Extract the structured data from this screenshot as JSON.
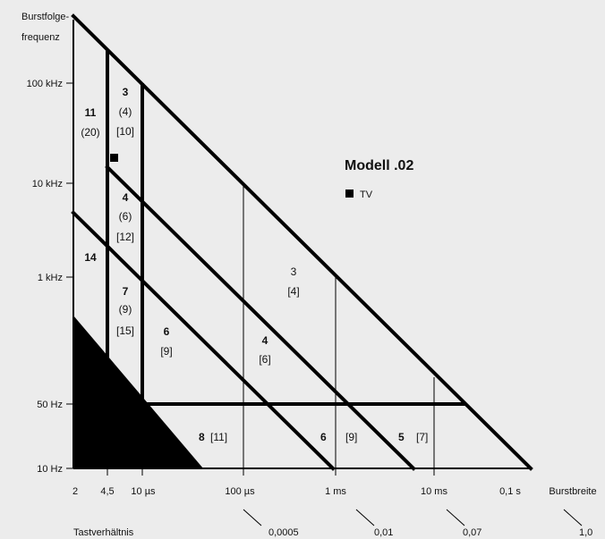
{
  "y_axis": {
    "title_line1": "Burstfolge-",
    "title_line2": "frequenz",
    "ticks": [
      "100 kHz",
      "10 kHz",
      "1 kHz",
      "50 Hz",
      "10 Hz"
    ]
  },
  "x_axis": {
    "title": "Burstbreite",
    "ticks": [
      "2",
      "4,5",
      "10 µs",
      "100 µs",
      "1 ms",
      "10 ms",
      "0,1 s"
    ]
  },
  "duty_axis": {
    "title": "Tastverhältnis",
    "ticks": [
      "0,0005",
      "0,01",
      "0,07",
      "1,0"
    ]
  },
  "legend": {
    "title": "Modell .02",
    "marker_label": "TV",
    "marker_color": "#000000"
  },
  "region_labels": {
    "r11": "11",
    "r11_paren": "(20)",
    "r3": "3",
    "r3_paren": "(4)",
    "r3_bracket": "[10]",
    "r4": "4",
    "r4_paren": "(6)",
    "r4_bracket": "[12]",
    "r14": "14",
    "r7": "7",
    "r7_paren": "(9)",
    "r7_bracket": "[15]",
    "r6": "6",
    "r6_bracket": "[9]",
    "mid4": "4",
    "mid4_bracket": "[6]",
    "mid3": "3",
    "mid3_bracket": "[4]",
    "b8": "8",
    "b8_bracket": "[11]",
    "b6": "6",
    "b6_bracket": "[9]",
    "b5": "5",
    "b5_bracket": "[7]"
  }
}
